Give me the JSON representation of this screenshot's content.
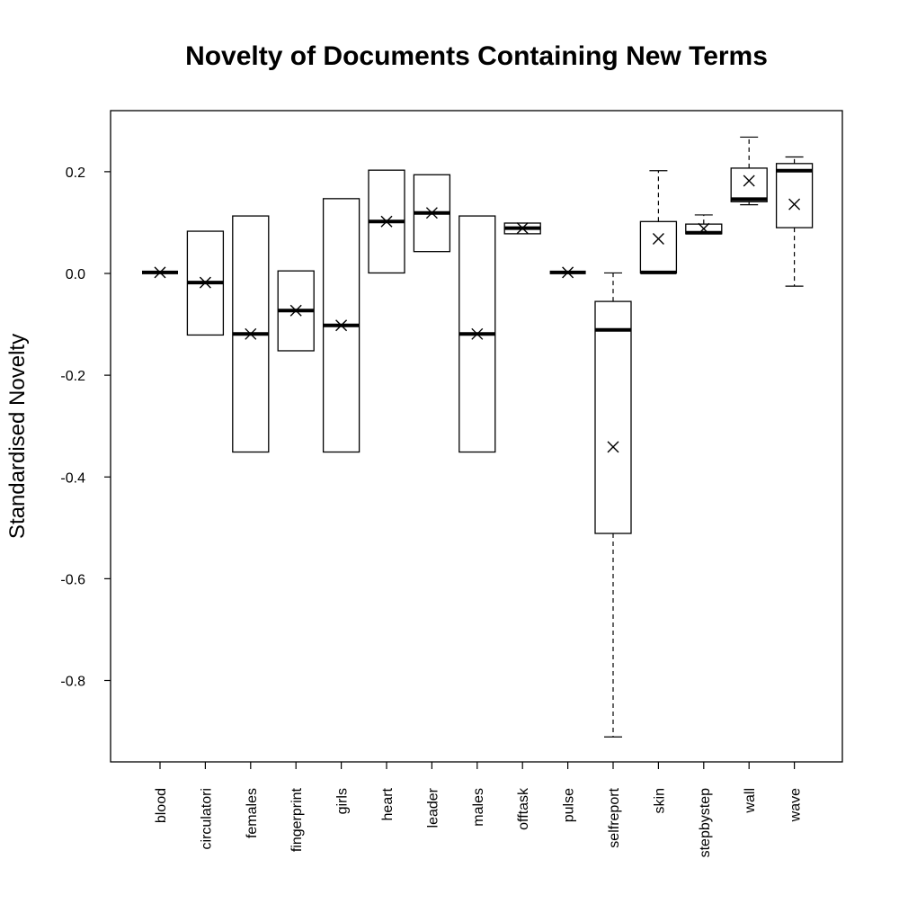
{
  "chart_data": {
    "type": "boxplot",
    "title": "Novelty of Documents Containing New Terms",
    "xlabel": "",
    "ylabel": "Standardised Novelty",
    "ylim": [
      -0.96,
      0.32
    ],
    "yticks": [
      0.2,
      0.0,
      -0.2,
      -0.4,
      -0.6,
      -0.8
    ],
    "ytick_labels": [
      "0.2",
      "0.0",
      "-0.2",
      "-0.4",
      "-0.6",
      "-0.8"
    ],
    "categories": [
      "blood",
      "circulatori",
      "females",
      "fingerprint",
      "girls",
      "heart",
      "leader",
      "males",
      "offtask",
      "pulse",
      "selfreport",
      "skin",
      "stepbystep",
      "wall",
      "wave"
    ],
    "grid": false,
    "legend": "none",
    "mean_marker": "x",
    "boxes": [
      {
        "category": "blood",
        "min": 0.002,
        "q1": 0.002,
        "median": 0.002,
        "q3": 0.002,
        "max": 0.002,
        "mean": 0.002
      },
      {
        "category": "circulatori",
        "min": -0.121,
        "q1": -0.121,
        "median": -0.018,
        "q3": 0.083,
        "max": 0.083,
        "mean": -0.018
      },
      {
        "category": "females",
        "min": -0.351,
        "q1": -0.351,
        "median": -0.119,
        "q3": 0.113,
        "max": 0.113,
        "mean": -0.119
      },
      {
        "category": "fingerprint",
        "min": -0.152,
        "q1": -0.152,
        "median": -0.073,
        "q3": 0.005,
        "max": 0.005,
        "mean": -0.073
      },
      {
        "category": "girls",
        "min": -0.351,
        "q1": -0.351,
        "median": -0.102,
        "q3": 0.147,
        "max": 0.147,
        "mean": -0.102
      },
      {
        "category": "heart",
        "min": 0.001,
        "q1": 0.001,
        "median": 0.102,
        "q3": 0.203,
        "max": 0.203,
        "mean": 0.102
      },
      {
        "category": "leader",
        "min": 0.043,
        "q1": 0.043,
        "median": 0.119,
        "q3": 0.194,
        "max": 0.194,
        "mean": 0.119
      },
      {
        "category": "males",
        "min": -0.351,
        "q1": -0.351,
        "median": -0.119,
        "q3": 0.113,
        "max": 0.113,
        "mean": -0.119
      },
      {
        "category": "offtask",
        "min": 0.078,
        "q1": 0.078,
        "median": 0.089,
        "q3": 0.099,
        "max": 0.099,
        "mean": 0.089
      },
      {
        "category": "pulse",
        "min": 0.002,
        "q1": 0.002,
        "median": 0.002,
        "q3": 0.002,
        "max": 0.002,
        "mean": 0.002
      },
      {
        "category": "selfreport",
        "min": -0.911,
        "q1": -0.511,
        "median": -0.111,
        "q3": -0.055,
        "max": 0.001,
        "mean": -0.341
      },
      {
        "category": "skin",
        "min": 0.001,
        "q1": 0.001,
        "median": 0.002,
        "q3": 0.102,
        "max": 0.202,
        "mean": 0.068
      },
      {
        "category": "stepbystep",
        "min": 0.078,
        "q1": 0.078,
        "median": 0.08,
        "q3": 0.097,
        "max": 0.115,
        "mean": 0.088
      },
      {
        "category": "wall",
        "min": 0.135,
        "q1": 0.141,
        "median": 0.146,
        "q3": 0.207,
        "max": 0.268,
        "mean": 0.182
      },
      {
        "category": "wave",
        "min": -0.025,
        "q1": 0.09,
        "median": 0.202,
        "q3": 0.216,
        "max": 0.229,
        "mean": 0.136
      }
    ]
  }
}
